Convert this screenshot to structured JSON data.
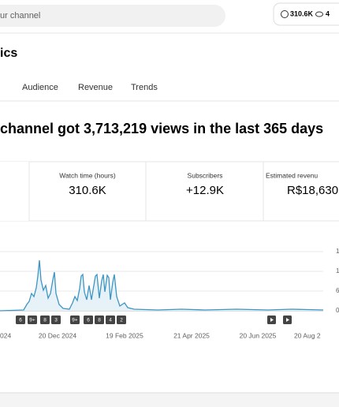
{
  "search": {
    "placeholder": "ur channel"
  },
  "status": {
    "watch": "310.6K",
    "viewers": "4"
  },
  "page_title": "ics",
  "tabs": [
    "Audience",
    "Revenue",
    "Trends"
  ],
  "headline": "channel got 3,713,219 views in the last 365 days",
  "cards": [
    {
      "label": "Watch time (hours)",
      "value": "310.6K"
    },
    {
      "label": "Subscribers",
      "value": "+12.9K"
    },
    {
      "label": "Estimated revenu",
      "value": "R$18,630"
    }
  ],
  "chart": {
    "y_labels": [
      "1",
      "1",
      "6",
      "0"
    ],
    "x_labels": [
      "024",
      "20 Dec 2024",
      "19 Feb 2025",
      "21 Apr 2025",
      "20 Jun 2025",
      "20 Aug 2"
    ],
    "markers": [
      "6",
      "9+",
      "8",
      "3",
      "9+",
      "6",
      "8",
      "4",
      "2"
    ]
  }
}
